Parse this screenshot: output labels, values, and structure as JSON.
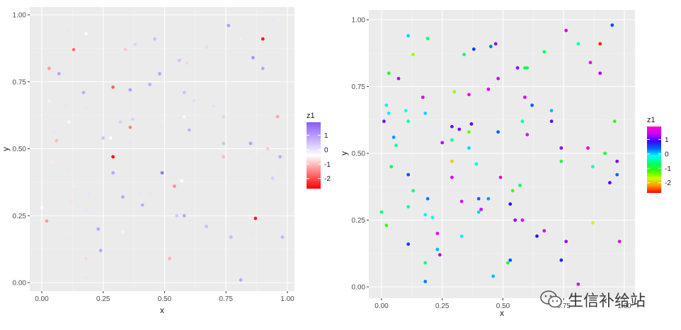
{
  "watermark": {
    "text": "生信补给站",
    "icon": "wechat-icon"
  },
  "chart_data": [
    {
      "type": "scatter",
      "title": "",
      "xlabel": "x",
      "ylabel": "y",
      "xlim": [
        0,
        1
      ],
      "ylim": [
        0,
        1
      ],
      "xticks": [
        "0.00",
        "0.25",
        "0.50",
        "0.75",
        "1.00"
      ],
      "yticks": [
        "0.00",
        "0.25",
        "0.50",
        "0.75",
        "1.00"
      ],
      "grid": true,
      "colorbar": {
        "title": "z1",
        "ticks": [
          "1",
          "0",
          "-1",
          "-2"
        ],
        "tick_values": [
          1,
          0,
          -1,
          -2
        ],
        "range": [
          -2.7,
          1.9
        ],
        "colors": [
          "#ff0000",
          "#ffffff",
          "#8a5cf5"
        ],
        "placement": "right"
      },
      "points": [
        {
          "x": 0.11,
          "y": 0.94,
          "z": 0.0
        },
        {
          "x": 0.18,
          "y": 0.93,
          "z": -0.3
        },
        {
          "x": 0.13,
          "y": 0.87,
          "z": -1.7
        },
        {
          "x": 0.03,
          "y": 0.8,
          "z": -1.3
        },
        {
          "x": 0.07,
          "y": 0.78,
          "z": 0.9
        },
        {
          "x": 0.03,
          "y": 0.68,
          "z": -0.2
        },
        {
          "x": 0.17,
          "y": 0.71,
          "z": 0.8
        },
        {
          "x": 0.1,
          "y": 0.66,
          "z": 0.0
        },
        {
          "x": 0.18,
          "y": 0.65,
          "z": 0.0
        },
        {
          "x": 0.29,
          "y": 0.73,
          "z": -1.8
        },
        {
          "x": 0.36,
          "y": 0.72,
          "z": 1.0
        },
        {
          "x": 0.34,
          "y": 0.87,
          "z": -0.9
        },
        {
          "x": 0.38,
          "y": 0.89,
          "z": 0.2
        },
        {
          "x": 0.46,
          "y": 0.91,
          "z": 0.5
        },
        {
          "x": 0.44,
          "y": 0.74,
          "z": 0.8
        },
        {
          "x": 0.48,
          "y": 0.78,
          "z": 0.9
        },
        {
          "x": 0.56,
          "y": 0.83,
          "z": 0.5
        },
        {
          "x": 0.59,
          "y": 0.82,
          "z": -0.8
        },
        {
          "x": 0.67,
          "y": 0.88,
          "z": -0.8
        },
        {
          "x": 0.76,
          "y": 0.96,
          "z": 1.0
        },
        {
          "x": 0.81,
          "y": 0.91,
          "z": -0.6
        },
        {
          "x": 0.9,
          "y": 0.91,
          "z": -2.5
        },
        {
          "x": 0.94,
          "y": 0.98,
          "z": 0.0
        },
        {
          "x": 0.86,
          "y": 0.84,
          "z": 1.2
        },
        {
          "x": 0.9,
          "y": 0.8,
          "z": 0.9
        },
        {
          "x": 0.58,
          "y": 0.71,
          "z": 0.5
        },
        {
          "x": 0.6,
          "y": 0.57,
          "z": 0.7
        },
        {
          "x": 0.62,
          "y": 0.68,
          "z": 0.1
        },
        {
          "x": 0.7,
          "y": 0.66,
          "z": 0.1
        },
        {
          "x": 0.74,
          "y": 0.62,
          "z": 0.2
        },
        {
          "x": 0.58,
          "y": 0.62,
          "z": -0.3
        },
        {
          "x": 0.02,
          "y": 0.62,
          "z": 0.0
        },
        {
          "x": 0.05,
          "y": 0.56,
          "z": 0.0
        },
        {
          "x": 0.06,
          "y": 0.53,
          "z": -1.0
        },
        {
          "x": 0.11,
          "y": 0.6,
          "z": -0.3
        },
        {
          "x": 0.32,
          "y": 0.6,
          "z": 0.3
        },
        {
          "x": 0.36,
          "y": 0.58,
          "z": -1.5
        },
        {
          "x": 0.37,
          "y": 0.61,
          "z": 0.3
        },
        {
          "x": 0.25,
          "y": 0.54,
          "z": 0.5
        },
        {
          "x": 0.28,
          "y": 0.54,
          "z": -0.4
        },
        {
          "x": 0.36,
          "y": 0.52,
          "z": 0.0
        },
        {
          "x": 0.49,
          "y": 0.58,
          "z": 0.0
        },
        {
          "x": 0.74,
          "y": 0.52,
          "z": 0.5
        },
        {
          "x": 0.74,
          "y": 0.47,
          "z": -1.0
        },
        {
          "x": 0.85,
          "y": 0.52,
          "z": 1.0
        },
        {
          "x": 0.92,
          "y": 0.5,
          "z": -0.9
        },
        {
          "x": 0.97,
          "y": 0.47,
          "z": 0.8
        },
        {
          "x": 0.97,
          "y": 0.42,
          "z": 0.0
        },
        {
          "x": 0.96,
          "y": 0.62,
          "z": -1.2
        },
        {
          "x": 0.94,
          "y": 0.39,
          "z": 0.3
        },
        {
          "x": 0.87,
          "y": 0.46,
          "z": 0.0
        },
        {
          "x": 0.29,
          "y": 0.47,
          "z": -2.6
        },
        {
          "x": 0.29,
          "y": 0.41,
          "z": 0.9
        },
        {
          "x": 0.49,
          "y": 0.41,
          "z": 1.6
        },
        {
          "x": 0.04,
          "y": 0.45,
          "z": -0.6
        },
        {
          "x": 0.11,
          "y": 0.42,
          "z": 0.0
        },
        {
          "x": 0.13,
          "y": 0.36,
          "z": -0.6
        },
        {
          "x": 0.19,
          "y": 0.33,
          "z": 0.0
        },
        {
          "x": 0.33,
          "y": 0.32,
          "z": 0.9
        },
        {
          "x": 0.4,
          "y": 0.33,
          "z": 0.0
        },
        {
          "x": 0.44,
          "y": 0.33,
          "z": 0.0
        },
        {
          "x": 0.54,
          "y": 0.36,
          "z": -1.4
        },
        {
          "x": 0.57,
          "y": 0.38,
          "z": -0.4
        },
        {
          "x": 0.12,
          "y": 0.3,
          "z": -0.7
        },
        {
          "x": 0.41,
          "y": 0.29,
          "z": 0.8
        },
        {
          "x": 0.0,
          "y": 0.28,
          "z": -0.4
        },
        {
          "x": 0.02,
          "y": 0.23,
          "z": -1.3
        },
        {
          "x": 0.18,
          "y": 0.27,
          "z": 0.0
        },
        {
          "x": 0.21,
          "y": 0.26,
          "z": 0.0
        },
        {
          "x": 0.23,
          "y": 0.2,
          "z": 0.9
        },
        {
          "x": 0.24,
          "y": 0.12,
          "z": 0.9
        },
        {
          "x": 0.18,
          "y": 0.09,
          "z": -0.8
        },
        {
          "x": 0.18,
          "y": 0.02,
          "z": 0.0
        },
        {
          "x": 0.11,
          "y": 0.16,
          "z": 0.0
        },
        {
          "x": 0.33,
          "y": 0.19,
          "z": -0.2
        },
        {
          "x": 0.52,
          "y": 0.09,
          "z": -1.1
        },
        {
          "x": 0.58,
          "y": 0.25,
          "z": 0.9
        },
        {
          "x": 0.55,
          "y": 0.25,
          "z": 0.4
        },
        {
          "x": 0.67,
          "y": 0.21,
          "z": 0.6
        },
        {
          "x": 0.77,
          "y": 0.17,
          "z": 0.6
        },
        {
          "x": 0.81,
          "y": 0.01,
          "z": 0.9
        },
        {
          "x": 0.87,
          "y": 0.24,
          "z": -2.5
        },
        {
          "x": 0.98,
          "y": 0.17,
          "z": 0.7
        },
        {
          "x": 0.86,
          "y": 0.18,
          "z": 0.0
        }
      ]
    },
    {
      "type": "scatter",
      "title": "",
      "xlabel": "x",
      "ylabel": "y",
      "xlim": [
        0,
        1
      ],
      "ylim": [
        0,
        1
      ],
      "xticks": [
        "0.00",
        "0.25",
        "0.50",
        "0.75",
        "1.00"
      ],
      "yticks": [
        "0.00",
        "0.25",
        "0.50",
        "0.75",
        "1.00"
      ],
      "grid": true,
      "colorbar": {
        "title": "z1",
        "ticks": [
          "1",
          "0",
          "-1",
          "-2"
        ],
        "tick_values": [
          1,
          0,
          -1,
          -2
        ],
        "range": [
          -2.7,
          1.9
        ],
        "colors": [
          "#ff0000",
          "#ff9900",
          "#ccff00",
          "#33ff00",
          "#00ff66",
          "#00ffff",
          "#0066ff",
          "#3300ff",
          "#cc00ff",
          "#ff00cc"
        ],
        "placement": "right"
      },
      "points": [
        {
          "x": 0.11,
          "y": 0.94,
          "z": 0.0
        },
        {
          "x": 0.19,
          "y": 0.93,
          "z": -0.6
        },
        {
          "x": 0.13,
          "y": 0.87,
          "z": -1.5
        },
        {
          "x": 0.03,
          "y": 0.8,
          "z": -1.0
        },
        {
          "x": 0.07,
          "y": 0.78,
          "z": 1.3
        },
        {
          "x": 0.02,
          "y": 0.68,
          "z": -0.3
        },
        {
          "x": 0.03,
          "y": 0.65,
          "z": -0.1
        },
        {
          "x": 0.1,
          "y": 0.66,
          "z": -0.2
        },
        {
          "x": 0.17,
          "y": 0.71,
          "z": 1.6
        },
        {
          "x": 0.18,
          "y": 0.65,
          "z": 0.0
        },
        {
          "x": 0.01,
          "y": 0.62,
          "z": 1.1
        },
        {
          "x": 0.11,
          "y": 0.62,
          "z": -0.4
        },
        {
          "x": 0.05,
          "y": 0.56,
          "z": 0.2
        },
        {
          "x": 0.06,
          "y": 0.53,
          "z": -0.5
        },
        {
          "x": 0.3,
          "y": 0.73,
          "z": -1.5
        },
        {
          "x": 0.34,
          "y": 0.87,
          "z": -0.7
        },
        {
          "x": 0.36,
          "y": 0.72,
          "z": 1.7
        },
        {
          "x": 0.38,
          "y": 0.89,
          "z": 0.6
        },
        {
          "x": 0.45,
          "y": 0.9,
          "z": 0.3
        },
        {
          "x": 0.47,
          "y": 0.91,
          "z": 1.2
        },
        {
          "x": 0.44,
          "y": 0.74,
          "z": 1.5
        },
        {
          "x": 0.48,
          "y": 0.78,
          "z": 1.4
        },
        {
          "x": 0.56,
          "y": 0.82,
          "z": 1.2
        },
        {
          "x": 0.59,
          "y": 0.82,
          "z": -0.7
        },
        {
          "x": 0.6,
          "y": 0.82,
          "z": -0.8
        },
        {
          "x": 0.67,
          "y": 0.88,
          "z": -0.8
        },
        {
          "x": 0.76,
          "y": 0.96,
          "z": 1.5
        },
        {
          "x": 0.81,
          "y": 0.91,
          "z": -0.4
        },
        {
          "x": 0.9,
          "y": 0.91,
          "z": -2.6
        },
        {
          "x": 0.95,
          "y": 0.98,
          "z": 0.5
        },
        {
          "x": 0.86,
          "y": 0.84,
          "z": 1.8
        },
        {
          "x": 0.9,
          "y": 0.8,
          "z": 1.3
        },
        {
          "x": 0.59,
          "y": 0.71,
          "z": 1.5
        },
        {
          "x": 0.62,
          "y": 0.68,
          "z": 0.4
        },
        {
          "x": 0.7,
          "y": 0.66,
          "z": 0.1
        },
        {
          "x": 0.7,
          "y": 0.62,
          "z": 1.0
        },
        {
          "x": 0.58,
          "y": 0.62,
          "z": -0.4
        },
        {
          "x": 0.6,
          "y": 0.57,
          "z": 1.6
        },
        {
          "x": 0.29,
          "y": 0.6,
          "z": 1.1
        },
        {
          "x": 0.32,
          "y": 0.59,
          "z": 1.1
        },
        {
          "x": 0.36,
          "y": 0.58,
          "z": -1.3
        },
        {
          "x": 0.37,
          "y": 0.61,
          "z": 1.0
        },
        {
          "x": 0.25,
          "y": 0.54,
          "z": 1.3
        },
        {
          "x": 0.29,
          "y": 0.55,
          "z": -0.5
        },
        {
          "x": 0.36,
          "y": 0.52,
          "z": 0.0
        },
        {
          "x": 0.48,
          "y": 0.58,
          "z": 0.4
        },
        {
          "x": 0.74,
          "y": 0.52,
          "z": 1.2
        },
        {
          "x": 0.74,
          "y": 0.47,
          "z": -0.8
        },
        {
          "x": 0.85,
          "y": 0.52,
          "z": 1.6
        },
        {
          "x": 0.92,
          "y": 0.5,
          "z": -0.8
        },
        {
          "x": 0.97,
          "y": 0.47,
          "z": 1.1
        },
        {
          "x": 0.97,
          "y": 0.42,
          "z": 0.4
        },
        {
          "x": 0.96,
          "y": 0.62,
          "z": -1.0
        },
        {
          "x": 0.94,
          "y": 0.39,
          "z": 1.0
        },
        {
          "x": 0.87,
          "y": 0.45,
          "z": -0.3
        },
        {
          "x": 0.29,
          "y": 0.47,
          "z": -1.9
        },
        {
          "x": 0.29,
          "y": 0.41,
          "z": 1.5
        },
        {
          "x": 0.49,
          "y": 0.41,
          "z": 1.9
        },
        {
          "x": 0.39,
          "y": 0.46,
          "z": -0.3
        },
        {
          "x": 0.04,
          "y": 0.45,
          "z": -0.7
        },
        {
          "x": 0.11,
          "y": 0.42,
          "z": 0.5
        },
        {
          "x": 0.13,
          "y": 0.36,
          "z": -0.6
        },
        {
          "x": 0.19,
          "y": 0.33,
          "z": 0.3
        },
        {
          "x": 0.33,
          "y": 0.32,
          "z": 1.5
        },
        {
          "x": 0.4,
          "y": 0.33,
          "z": 0.4
        },
        {
          "x": 0.44,
          "y": 0.33,
          "z": 0.2
        },
        {
          "x": 0.54,
          "y": 0.36,
          "z": -1.2
        },
        {
          "x": 0.57,
          "y": 0.38,
          "z": -0.7
        },
        {
          "x": 0.11,
          "y": 0.3,
          "z": -0.5
        },
        {
          "x": 0.41,
          "y": 0.29,
          "z": 1.4
        },
        {
          "x": 0.4,
          "y": 0.28,
          "z": 0.0
        },
        {
          "x": 0.53,
          "y": 0.31,
          "z": 0.8
        },
        {
          "x": 0.0,
          "y": 0.28,
          "z": -0.6
        },
        {
          "x": 0.02,
          "y": 0.23,
          "z": -1.2
        },
        {
          "x": 0.18,
          "y": 0.27,
          "z": -0.1
        },
        {
          "x": 0.21,
          "y": 0.26,
          "z": -0.2
        },
        {
          "x": 0.23,
          "y": 0.2,
          "z": 1.7
        },
        {
          "x": 0.24,
          "y": 0.12,
          "z": 1.3
        },
        {
          "x": 0.23,
          "y": 0.14,
          "z": 0.1
        },
        {
          "x": 0.33,
          "y": 0.19,
          "z": -0.1
        },
        {
          "x": 0.18,
          "y": 0.09,
          "z": -0.6
        },
        {
          "x": 0.18,
          "y": 0.02,
          "z": 0.3
        },
        {
          "x": 0.11,
          "y": 0.16,
          "z": 0.6
        },
        {
          "x": 0.46,
          "y": 0.04,
          "z": 0.1
        },
        {
          "x": 0.52,
          "y": 0.09,
          "z": -0.9
        },
        {
          "x": 0.53,
          "y": 0.1,
          "z": 0.5
        },
        {
          "x": 0.55,
          "y": 0.25,
          "z": 1.2
        },
        {
          "x": 0.58,
          "y": 0.25,
          "z": 1.6
        },
        {
          "x": 0.64,
          "y": 0.19,
          "z": 0.8
        },
        {
          "x": 0.67,
          "y": 0.21,
          "z": 1.4
        },
        {
          "x": 0.74,
          "y": 0.1,
          "z": 0.7
        },
        {
          "x": 0.76,
          "y": 0.17,
          "z": 1.2
        },
        {
          "x": 0.81,
          "y": 0.01,
          "z": 1.5
        },
        {
          "x": 0.87,
          "y": 0.24,
          "z": -1.7
        },
        {
          "x": 0.98,
          "y": 0.17,
          "z": 1.5
        }
      ]
    }
  ]
}
